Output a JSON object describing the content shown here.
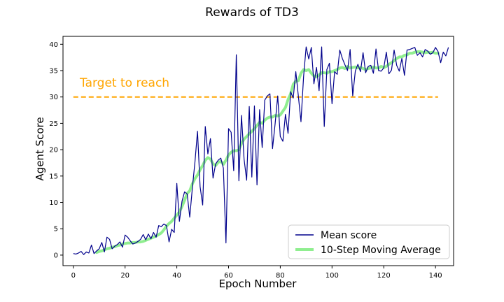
{
  "chart_data": {
    "type": "line",
    "title": "Rewards of TD3",
    "xlabel": "Epoch Number",
    "ylabel": "Agent Score",
    "xlim": [
      -4,
      147
    ],
    "ylim": [
      -2,
      41.5
    ],
    "xticks": [
      0,
      20,
      40,
      60,
      80,
      100,
      120,
      140
    ],
    "yticks": [
      0,
      5,
      10,
      15,
      20,
      25,
      30,
      35,
      40
    ],
    "grid": false,
    "legend_position": "lower-right",
    "target": {
      "value": 30,
      "label": "Target to reach",
      "color": "#ffa500",
      "x_range": [
        0,
        141
      ]
    },
    "series": [
      {
        "name": "Mean score",
        "color": "#00008b",
        "values": [
          0.3,
          0.2,
          0.4,
          0.7,
          0.1,
          0.6,
          0.4,
          1.9,
          0.3,
          0.8,
          1.2,
          2.4,
          0.6,
          3.4,
          3.0,
          1.2,
          1.7,
          2.0,
          2.5,
          1.5,
          3.8,
          3.4,
          2.7,
          2.1,
          2.3,
          2.6,
          3.0,
          3.9,
          2.9,
          4.0,
          3.1,
          4.3,
          3.4,
          5.6,
          5.4,
          5.9,
          5.6,
          2.5,
          4.9,
          4.3,
          13.6,
          6.4,
          10.2,
          12.0,
          11.6,
          7.2,
          12.7,
          17.6,
          23.5,
          13.0,
          9.5,
          24.4,
          19.2,
          22.1,
          14.6,
          17.3,
          18.0,
          18.4,
          16.5,
          2.3,
          24.0,
          23.3,
          16.0,
          38.0,
          14.1,
          26.5,
          18.2,
          14.2,
          28.2,
          14.8,
          28.3,
          13.3,
          27.6,
          20.4,
          29.4,
          30.2,
          30.6,
          20.2,
          24.9,
          30.2,
          22.5,
          21.6,
          26.7,
          23.1,
          31.0,
          29.8,
          34.8,
          30.1,
          25.3,
          33.8,
          39.5,
          37.2,
          39.4,
          32.5,
          35.6,
          31.2,
          39.5,
          24.4,
          35.2,
          36.4,
          28.7,
          34.8,
          34.3,
          38.9,
          37.3,
          36.1,
          35.0,
          39.0,
          30.2,
          34.9,
          36.2,
          34.8,
          38.4,
          34.6,
          35.8,
          36.0,
          34.5,
          39.1,
          35.0,
          34.9,
          35.5,
          38.5,
          34.4,
          35.1,
          38.9,
          36.0,
          34.9,
          37.3,
          34.1,
          38.9,
          39.0,
          39.2,
          39.4,
          37.9,
          38.4,
          37.6,
          39.0,
          38.7,
          38.1,
          38.4,
          39.4,
          38.6,
          36.5,
          38.5,
          37.8,
          39.4
        ]
      },
      {
        "name": "10-Step Moving Average",
        "color": "#90ee90",
        "x_start": 9,
        "values": [
          0.5,
          0.7,
          0.8,
          1.0,
          1.2,
          1.3,
          1.5,
          1.6,
          1.8,
          1.9,
          2.1,
          2.2,
          2.3,
          2.3,
          2.4,
          2.4,
          2.5,
          2.5,
          2.6,
          2.8,
          3.0,
          3.2,
          3.4,
          3.6,
          3.9,
          4.2,
          4.8,
          5.5,
          6.0,
          6.4,
          7.0,
          7.6,
          8.2,
          9.2,
          10.4,
          11.7,
          12.2,
          13.5,
          14.5,
          15.2,
          16.2,
          17.0,
          18.0,
          18.5,
          18.2,
          17.3,
          17.0,
          17.6,
          17.8,
          17.2,
          18.0,
          19.0,
          19.5,
          19.8,
          19.8,
          20.0,
          21.2,
          22.0,
          22.5,
          23.0,
          23.5,
          24.0,
          24.6,
          25.2,
          25.0,
          25.6,
          26.0,
          26.2,
          26.2,
          26.5,
          26.4,
          26.6,
          27.3,
          28.0,
          29.5,
          30.6,
          32.4,
          33.0,
          33.1,
          34.5,
          35.2,
          35.0,
          35.2,
          34.5,
          34.0,
          33.8,
          34.2,
          34.6,
          34.6,
          34.5,
          34.8,
          34.8,
          35.0,
          35.2,
          35.5,
          35.6,
          35.4,
          35.8,
          35.5,
          35.6,
          35.7,
          35.5,
          35.6,
          35.4,
          35.2,
          35.4,
          35.5,
          35.7,
          35.5,
          35.5,
          35.8,
          35.6,
          35.8,
          36.2,
          36.5,
          36.9,
          37.3,
          37.6,
          37.6,
          37.9,
          38.0,
          38.3,
          38.3,
          38.5,
          38.6,
          38.6,
          38.5,
          38.4,
          38.5,
          38.4,
          38.5,
          38.3,
          38.3
        ]
      }
    ]
  }
}
